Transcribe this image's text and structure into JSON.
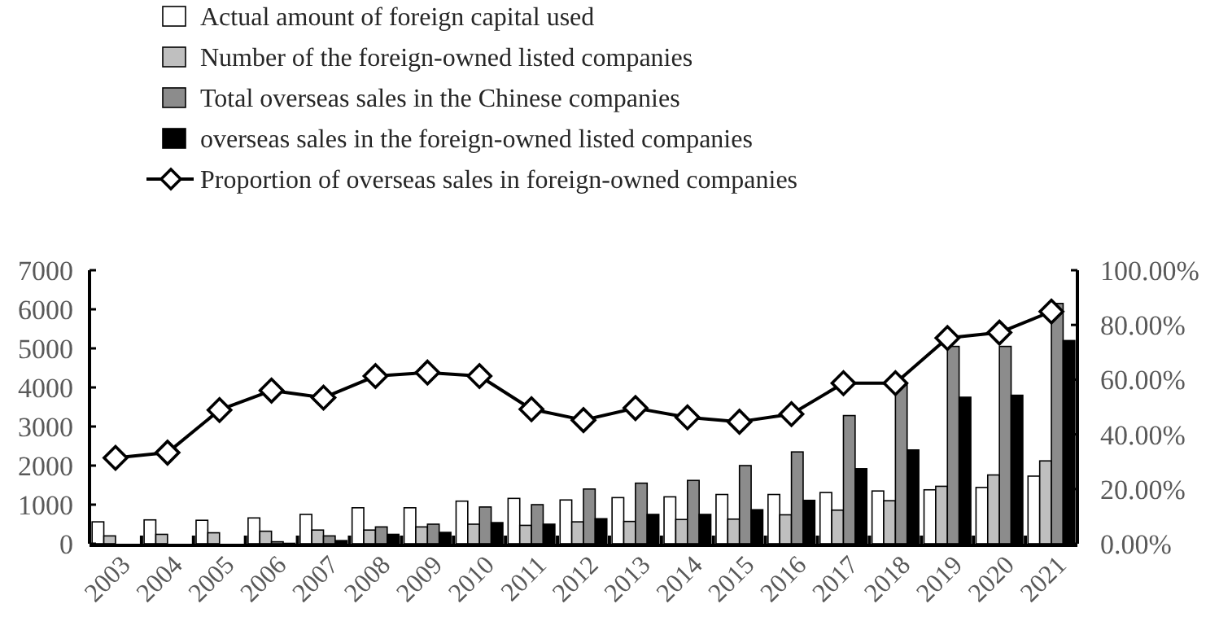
{
  "chart_data": {
    "type": "bar",
    "categories": [
      "2003",
      "2004",
      "2005",
      "2006",
      "2007",
      "2008",
      "2009",
      "2010",
      "2011",
      "2012",
      "2013",
      "2014",
      "2015",
      "2016",
      "2017",
      "2018",
      "2019",
      "2020",
      "2021"
    ],
    "series": [
      {
        "name": "Actual amount of foreign capital used",
        "color": "#ffffff",
        "values": [
          560,
          610,
          600,
          660,
          750,
          920,
          920,
          1090,
          1160,
          1120,
          1180,
          1200,
          1260,
          1260,
          1310,
          1350,
          1380,
          1440,
          1730
        ]
      },
      {
        "name": "Number of the foreign-owned listed companies",
        "color": "#bfbfbf",
        "values": [
          200,
          240,
          280,
          320,
          350,
          350,
          430,
          500,
          470,
          560,
          570,
          620,
          630,
          740,
          860,
          1100,
          1470,
          1760,
          2120
        ]
      },
      {
        "name": "Total overseas sales in the Chinese companies",
        "color": "#8c8c8c",
        "values": [
          0,
          0,
          0,
          50,
          200,
          430,
          500,
          940,
          1000,
          1400,
          1550,
          1620,
          2000,
          2350,
          3280,
          4100,
          5050,
          5050,
          6150
        ]
      },
      {
        "name": "overseas sales in the foreign-owned listed companies",
        "color": "#000000",
        "values": [
          0,
          0,
          0,
          10,
          80,
          240,
          290,
          540,
          500,
          640,
          750,
          750,
          870,
          1110,
          1920,
          2400,
          3750,
          3800,
          5200
        ]
      },
      {
        "name": "Proportion of overseas sales in foreign-owned companies",
        "type": "line",
        "axis": "y2",
        "color": "#000000",
        "marker": "diamond",
        "values": [
          31.4,
          33.3,
          48.9,
          56,
          53.4,
          61.3,
          62.6,
          61.3,
          49.2,
          45.2,
          49.6,
          46.2,
          44.6,
          47.4,
          58.7,
          58.7,
          75.2,
          77.2,
          84.9
        ]
      }
    ],
    "ylim": [
      0,
      7000
    ],
    "yticks": [
      0,
      1000,
      2000,
      3000,
      4000,
      5000,
      6000,
      7000
    ],
    "y2lim": [
      0,
      100
    ],
    "y2ticks": [
      {
        "value": 0,
        "label": "0.00%"
      },
      {
        "value": 20,
        "label": "20.00%"
      },
      {
        "value": 40,
        "label": "40.00%"
      },
      {
        "value": 60,
        "label": "60.00%"
      },
      {
        "value": 80,
        "label": "80.00%"
      },
      {
        "value": 100,
        "label": "100.00%"
      }
    ],
    "legend": "top left",
    "grid": false
  }
}
